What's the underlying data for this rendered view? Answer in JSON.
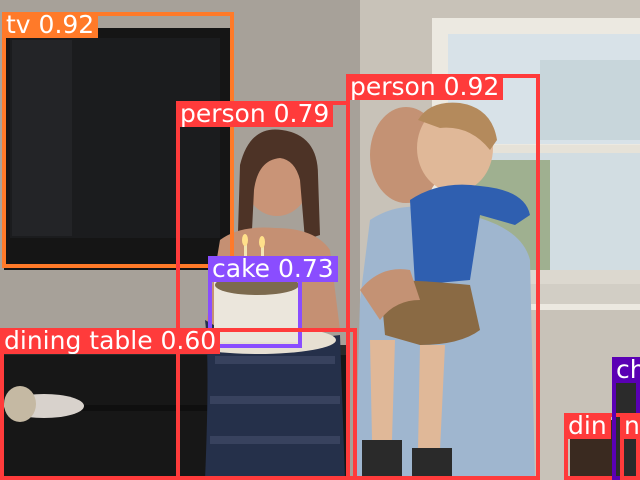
{
  "colors": {
    "tv": "#FF7A29",
    "person": "#FF3B3B",
    "cake": "#8A4DFF",
    "dining_table": "#FF3B3B",
    "chair": "#5A00B4"
  },
  "detections": [
    {
      "id": "tv",
      "label": "tv 0.92",
      "color": "#FF7A29"
    },
    {
      "id": "person-left",
      "label": "person 0.79",
      "color": "#FF3B3B"
    },
    {
      "id": "person-right",
      "label": "person 0.92",
      "color": "#FF3B3B"
    },
    {
      "id": "cake",
      "label": "cake 0.73",
      "color": "#8A4DFF"
    },
    {
      "id": "dining-table",
      "label": "dining table 0.60",
      "color": "#FF3B3B"
    },
    {
      "id": "dining-table-2",
      "label": "din",
      "color": "#FF3B3B"
    },
    {
      "id": "chair-1",
      "label": "ch",
      "color": "#5A00B4"
    },
    {
      "id": "chair-2",
      "label": "n",
      "color": "#5A00B4"
    }
  ]
}
